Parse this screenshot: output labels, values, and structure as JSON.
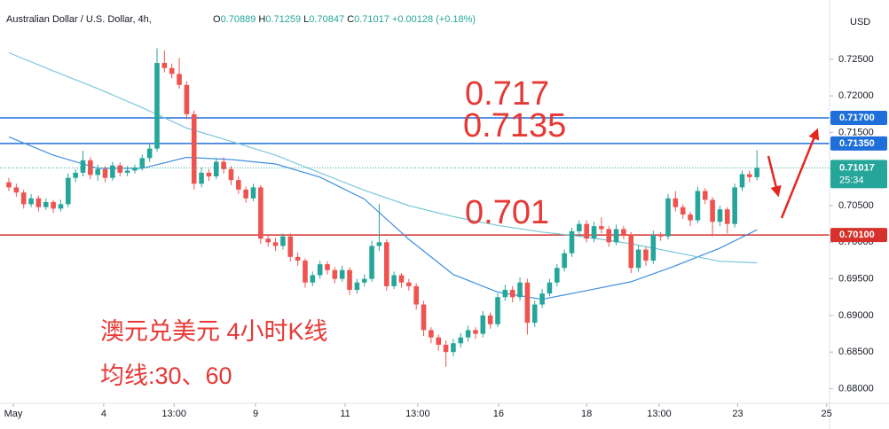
{
  "chart_data": {
    "type": "candlestick",
    "title": "Australian Dollar / U.S. Dollar, 4h,",
    "ohlc_legend": [
      {
        "key": "O",
        "value": "0.70889"
      },
      {
        "key": "H",
        "value": "0.71259"
      },
      {
        "key": "L",
        "value": "0.70847"
      },
      {
        "key": "C",
        "value": "0.71017"
      }
    ],
    "change_text": "+0.00128 (+0.18%)",
    "currency": "USD",
    "up_color": "#26a69a",
    "down_color": "#ef5350",
    "xlim": [
      -1.2,
      110.8
    ],
    "xticks": [
      {
        "value": 0.6,
        "label": "May"
      },
      {
        "value": 12.8,
        "label": "4"
      },
      {
        "value": 22.3,
        "label": "13:00"
      },
      {
        "value": 33.3,
        "label": "9"
      },
      {
        "value": 45.4,
        "label": "11"
      },
      {
        "value": 55.2,
        "label": "13:00"
      },
      {
        "value": 66.1,
        "label": "16"
      },
      {
        "value": 78.0,
        "label": "18"
      },
      {
        "value": 87.8,
        "label": "13:00"
      },
      {
        "value": 98.4,
        "label": "23"
      },
      {
        "value": 110.4,
        "label": "25"
      }
    ],
    "ylim": [
      0.678,
      0.7331
    ],
    "yticks": [
      {
        "value": 0.68,
        "label": "0.68000"
      },
      {
        "value": 0.685,
        "label": "0.68500"
      },
      {
        "value": 0.69,
        "label": "0.69000"
      },
      {
        "value": 0.695,
        "label": "0.69500"
      },
      {
        "value": 0.7,
        "label": "0.70000"
      },
      {
        "value": 0.705,
        "label": "0.70500"
      },
      {
        "value": 0.71,
        "label": "0.71000"
      },
      {
        "value": 0.715,
        "label": "0.71500"
      },
      {
        "value": 0.72,
        "label": "0.72000"
      },
      {
        "value": 0.725,
        "label": "0.72500"
      }
    ],
    "grid": false,
    "candles": [
      [
        0.7082,
        0.7088,
        0.707,
        0.7075
      ],
      [
        0.7075,
        0.708,
        0.7062,
        0.7068
      ],
      [
        0.7068,
        0.7072,
        0.7046,
        0.7052
      ],
      [
        0.7052,
        0.7066,
        0.7048,
        0.706
      ],
      [
        0.706,
        0.7064,
        0.7042,
        0.7048
      ],
      [
        0.7048,
        0.706,
        0.7044,
        0.7055
      ],
      [
        0.7055,
        0.7058,
        0.704,
        0.7046
      ],
      [
        0.7046,
        0.7058,
        0.7042,
        0.7052
      ],
      [
        0.7052,
        0.7094,
        0.7048,
        0.7088
      ],
      [
        0.7088,
        0.71,
        0.7082,
        0.7095
      ],
      [
        0.7095,
        0.7125,
        0.709,
        0.7112
      ],
      [
        0.7112,
        0.7116,
        0.7086,
        0.7092
      ],
      [
        0.7092,
        0.7106,
        0.7084,
        0.71
      ],
      [
        0.71,
        0.7104,
        0.7082,
        0.7088
      ],
      [
        0.7088,
        0.711,
        0.7084,
        0.7105
      ],
      [
        0.7105,
        0.7109,
        0.709,
        0.7095
      ],
      [
        0.7095,
        0.7104,
        0.709,
        0.7098
      ],
      [
        0.7098,
        0.7106,
        0.7094,
        0.7102
      ],
      [
        0.7102,
        0.712,
        0.7098,
        0.7115
      ],
      [
        0.7115,
        0.7134,
        0.711,
        0.7128
      ],
      [
        0.7128,
        0.7265,
        0.7124,
        0.7245
      ],
      [
        0.7245,
        0.7262,
        0.7232,
        0.7238
      ],
      [
        0.7238,
        0.7244,
        0.7224,
        0.723
      ],
      [
        0.723,
        0.7252,
        0.721,
        0.7215
      ],
      [
        0.7215,
        0.722,
        0.7168,
        0.7175
      ],
      [
        0.7175,
        0.718,
        0.7072,
        0.708
      ],
      [
        0.708,
        0.7102,
        0.7075,
        0.7095
      ],
      [
        0.7095,
        0.71,
        0.7084,
        0.709
      ],
      [
        0.709,
        0.7115,
        0.7086,
        0.711
      ],
      [
        0.711,
        0.7116,
        0.7094,
        0.71
      ],
      [
        0.71,
        0.7104,
        0.7078,
        0.7085
      ],
      [
        0.7085,
        0.709,
        0.7066,
        0.7072
      ],
      [
        0.7072,
        0.7076,
        0.7054,
        0.706
      ],
      [
        0.706,
        0.708,
        0.7056,
        0.7075
      ],
      [
        0.7075,
        0.7078,
        0.6998,
        0.7005
      ],
      [
        0.7005,
        0.701,
        0.6994,
        0.7
      ],
      [
        0.7,
        0.7006,
        0.6988,
        0.6995
      ],
      [
        0.6995,
        0.7012,
        0.699,
        0.7008
      ],
      [
        0.7008,
        0.7012,
        0.6974,
        0.698
      ],
      [
        0.698,
        0.6986,
        0.6968,
        0.6975
      ],
      [
        0.6975,
        0.6978,
        0.6938,
        0.6945
      ],
      [
        0.6945,
        0.696,
        0.694,
        0.6955
      ],
      [
        0.6955,
        0.6975,
        0.695,
        0.697
      ],
      [
        0.697,
        0.6974,
        0.6956,
        0.6962
      ],
      [
        0.6962,
        0.6966,
        0.6944,
        0.695
      ],
      [
        0.695,
        0.6968,
        0.6946,
        0.6962
      ],
      [
        0.6962,
        0.6966,
        0.6928,
        0.6935
      ],
      [
        0.6935,
        0.695,
        0.693,
        0.6945
      ],
      [
        0.6945,
        0.6956,
        0.694,
        0.695
      ],
      [
        0.695,
        0.7002,
        0.6946,
        0.6995
      ],
      [
        0.6995,
        0.7052,
        0.6988,
        0.7
      ],
      [
        0.7,
        0.7004,
        0.6934,
        0.694
      ],
      [
        0.694,
        0.696,
        0.6936,
        0.6955
      ],
      [
        0.6955,
        0.6958,
        0.6938,
        0.6945
      ],
      [
        0.6945,
        0.695,
        0.6934,
        0.694
      ],
      [
        0.694,
        0.6944,
        0.6908,
        0.6915
      ],
      [
        0.6915,
        0.692,
        0.6872,
        0.688
      ],
      [
        0.688,
        0.6884,
        0.6862,
        0.687
      ],
      [
        0.687,
        0.6874,
        0.6852,
        0.686
      ],
      [
        0.686,
        0.6866,
        0.683,
        0.685
      ],
      [
        0.685,
        0.6868,
        0.6844,
        0.6862
      ],
      [
        0.6862,
        0.6876,
        0.6856,
        0.687
      ],
      [
        0.687,
        0.6886,
        0.6864,
        0.688
      ],
      [
        0.688,
        0.6884,
        0.6868,
        0.6875
      ],
      [
        0.6875,
        0.6906,
        0.687,
        0.69
      ],
      [
        0.69,
        0.6904,
        0.6882,
        0.6888
      ],
      [
        0.6888,
        0.693,
        0.6884,
        0.6925
      ],
      [
        0.6925,
        0.6942,
        0.692,
        0.6935
      ],
      [
        0.6935,
        0.694,
        0.6918,
        0.6925
      ],
      [
        0.6925,
        0.6952,
        0.692,
        0.6945
      ],
      [
        0.6945,
        0.695,
        0.6874,
        0.689
      ],
      [
        0.689,
        0.692,
        0.6884,
        0.6915
      ],
      [
        0.6915,
        0.6936,
        0.691,
        0.693
      ],
      [
        0.693,
        0.695,
        0.6926,
        0.6945
      ],
      [
        0.6945,
        0.697,
        0.694,
        0.6965
      ],
      [
        0.6965,
        0.699,
        0.696,
        0.6985
      ],
      [
        0.6985,
        0.702,
        0.698,
        0.7015
      ],
      [
        0.7015,
        0.703,
        0.7008,
        0.7025
      ],
      [
        0.7025,
        0.703,
        0.7,
        0.7005
      ],
      [
        0.7005,
        0.7028,
        0.7,
        0.7022
      ],
      [
        0.7022,
        0.7034,
        0.7012,
        0.7018
      ],
      [
        0.7018,
        0.7022,
        0.6994,
        0.7
      ],
      [
        0.7,
        0.7024,
        0.6996,
        0.7018
      ],
      [
        0.7018,
        0.7022,
        0.7004,
        0.701
      ],
      [
        0.701,
        0.7014,
        0.6958,
        0.6965
      ],
      [
        0.6965,
        0.6996,
        0.696,
        0.699
      ],
      [
        0.699,
        0.6994,
        0.6968,
        0.6975
      ],
      [
        0.6975,
        0.7016,
        0.697,
        0.701
      ],
      [
        0.701,
        0.7014,
        0.7002,
        0.7008
      ],
      [
        0.7008,
        0.7066,
        0.7004,
        0.706
      ],
      [
        0.706,
        0.707,
        0.7042,
        0.7048
      ],
      [
        0.7048,
        0.7052,
        0.7032,
        0.7038
      ],
      [
        0.7038,
        0.7042,
        0.7022,
        0.703
      ],
      [
        0.703,
        0.7076,
        0.7026,
        0.707
      ],
      [
        0.707,
        0.7074,
        0.7052,
        0.7058
      ],
      [
        0.7058,
        0.7062,
        0.7008,
        0.7028
      ],
      [
        0.7028,
        0.705,
        0.7022,
        0.7045
      ],
      [
        0.7045,
        0.7048,
        0.7012,
        0.7025
      ],
      [
        0.7025,
        0.708,
        0.702,
        0.7075
      ],
      [
        0.7075,
        0.7098,
        0.707,
        0.7093
      ],
      [
        0.7093,
        0.7098,
        0.7082,
        0.7089
      ],
      [
        0.70889,
        0.71259,
        0.70847,
        0.71017
      ]
    ],
    "ma": [
      {
        "color": "#3f8fe0",
        "x": [
          0,
          6,
          12,
          18,
          24,
          30,
          36,
          42,
          48,
          54,
          60,
          66,
          72,
          78,
          84,
          90,
          96,
          101
        ],
        "values": [
          0.7144,
          0.7119,
          0.7101,
          0.7101,
          0.7116,
          0.7113,
          0.7107,
          0.7089,
          0.7059,
          0.7004,
          0.6956,
          0.6932,
          0.6922,
          0.6934,
          0.6946,
          0.6968,
          0.6992,
          0.7017
        ]
      },
      {
        "color": "#7cc8d8",
        "x": [
          0,
          6,
          12,
          18,
          24,
          30,
          36,
          42,
          48,
          54,
          60,
          66,
          72,
          78,
          84,
          90,
          96,
          101
        ],
        "values": [
          0.7259,
          0.7234,
          0.721,
          0.7184,
          0.7156,
          0.7138,
          0.7119,
          0.7095,
          0.7071,
          0.705,
          0.7035,
          0.7023,
          0.7014,
          0.7007,
          0.6998,
          0.6986,
          0.6974,
          0.6972
        ]
      }
    ],
    "hlines": [
      {
        "value": 0.717,
        "label": "0.71700",
        "color": "#1e6fd9"
      },
      {
        "value": 0.7135,
        "label": "0.71350",
        "color": "#1e6fd9"
      },
      {
        "value": 0.701,
        "label": "0.70100",
        "color": "#d6312b"
      }
    ],
    "last_price": 0.71017,
    "countdown": "25:34",
    "annotations": [
      "0.717",
      "0.7135",
      "0.701",
      "澳元兑美元 4小时K线",
      "均线:30、60"
    ],
    "annotation_color": "#e53935"
  }
}
